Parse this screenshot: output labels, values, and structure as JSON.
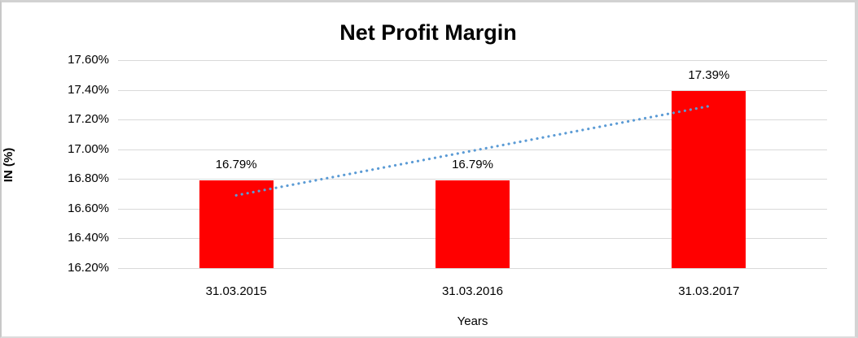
{
  "chart_data": {
    "type": "bar",
    "title": "Net Profit Margin",
    "xlabel": "Years",
    "ylabel": "IN (%)",
    "categories": [
      "31.03.2015",
      "31.03.2016",
      "31.03.2017"
    ],
    "values": [
      16.79,
      16.79,
      17.39
    ],
    "data_labels": [
      "16.79%",
      "16.79%",
      "17.39%"
    ],
    "ylim": [
      16.2,
      17.6
    ],
    "ytick_step": 0.2,
    "yticks": [
      17.6,
      17.4,
      17.2,
      17.0,
      16.8,
      16.6,
      16.4,
      16.2
    ],
    "ytick_labels": [
      "17.60%",
      "17.40%",
      "17.20%",
      "17.00%",
      "16.80%",
      "16.60%",
      "16.40%",
      "16.20%"
    ],
    "grid": true,
    "legend": "none",
    "colors": {
      "bar": "#ff0000",
      "gridline": "#d9d9d9",
      "text": "#000000",
      "trendline": "#5b9bd5"
    },
    "trendline": {
      "style": "dotted",
      "from_value": 16.69,
      "to_value": 17.29
    }
  }
}
